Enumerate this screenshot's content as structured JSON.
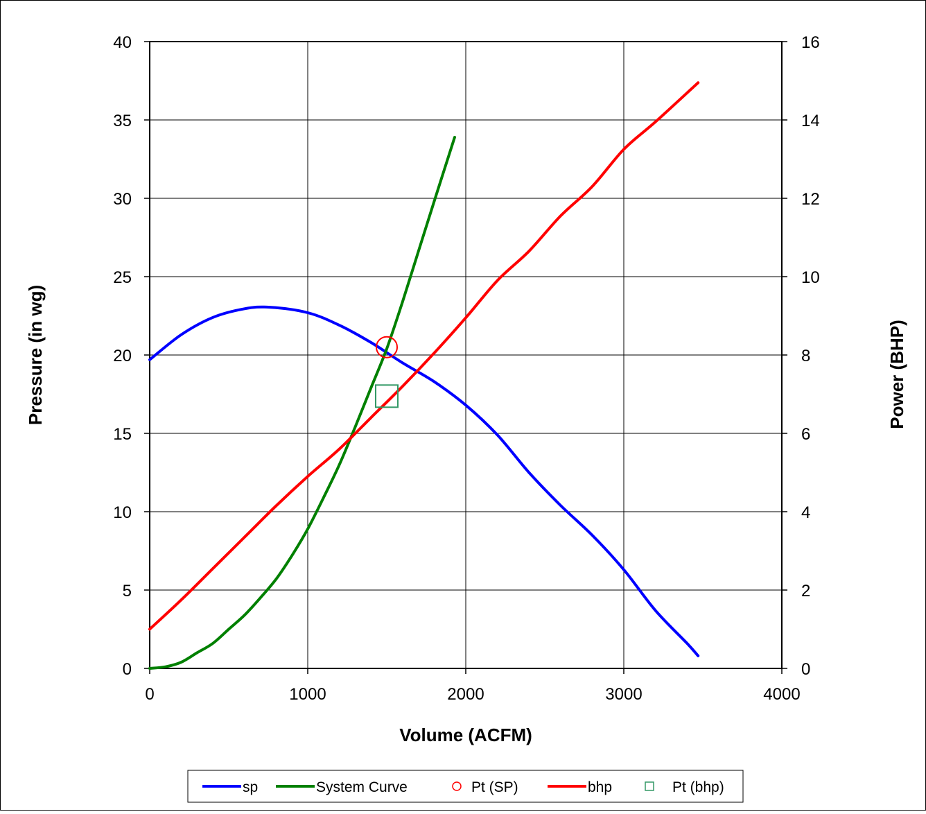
{
  "chart_data": {
    "type": "line",
    "title": "",
    "xlabel": "Volume (ACFM)",
    "ylabel": "Pressure (in wg)",
    "y2label": "Power (BHP)",
    "xlim": [
      0,
      4000
    ],
    "ylim": [
      0,
      40
    ],
    "y2lim": [
      0,
      16
    ],
    "xticks": [
      0,
      1000,
      2000,
      3000,
      4000
    ],
    "yticks": [
      0,
      5,
      10,
      15,
      20,
      25,
      30,
      35,
      40
    ],
    "y2ticks": [
      0,
      2,
      4,
      6,
      8,
      10,
      12,
      14,
      16
    ],
    "grid": true,
    "legend_position": "bottom",
    "series": [
      {
        "name": "sp",
        "axis": "left",
        "color": "#0000ff",
        "marker": "line",
        "x": [
          0,
          200,
          400,
          600,
          760,
          1000,
          1200,
          1400,
          1600,
          1800,
          2000,
          2200,
          2400,
          2600,
          2800,
          3000,
          3200,
          3400,
          3470
        ],
        "y": [
          19.7,
          21.3,
          22.4,
          22.95,
          23.05,
          22.7,
          21.9,
          20.8,
          19.5,
          18.3,
          16.8,
          14.9,
          12.5,
          10.4,
          8.5,
          6.3,
          3.7,
          1.6,
          0.8
        ]
      },
      {
        "name": "System Curve",
        "axis": "left",
        "color": "#008000",
        "marker": "line",
        "x": [
          0,
          100,
          200,
          300,
          400,
          500,
          600,
          700,
          800,
          900,
          1000,
          1100,
          1200,
          1300,
          1400,
          1500,
          1600,
          1700,
          1800,
          1930
        ],
        "y": [
          0,
          0.1,
          0.4,
          1.0,
          1.6,
          2.5,
          3.4,
          4.5,
          5.7,
          7.2,
          8.9,
          10.9,
          13.0,
          15.4,
          17.9,
          20.4,
          23.4,
          26.6,
          29.8,
          33.9
        ]
      },
      {
        "name": "Pt (SP)",
        "axis": "left",
        "color": "#ff0000",
        "marker": "circle",
        "x": [
          1500
        ],
        "y": [
          20.5
        ]
      },
      {
        "name": "bhp",
        "axis": "right",
        "color": "#ff0000",
        "marker": "line",
        "x": [
          0,
          200,
          400,
          600,
          800,
          1000,
          1200,
          1400,
          1600,
          1800,
          2000,
          2200,
          2400,
          2600,
          2800,
          3000,
          3200,
          3470
        ],
        "y": [
          1.0,
          1.75,
          2.55,
          3.35,
          4.15,
          4.9,
          5.6,
          6.4,
          7.2,
          8.05,
          8.95,
          9.9,
          10.65,
          11.55,
          12.3,
          13.25,
          13.95,
          14.95
        ]
      },
      {
        "name": "Pt (bhp)",
        "axis": "right",
        "color": "#339966",
        "marker": "square",
        "x": [
          1500
        ],
        "y": [
          6.95
        ]
      }
    ]
  }
}
